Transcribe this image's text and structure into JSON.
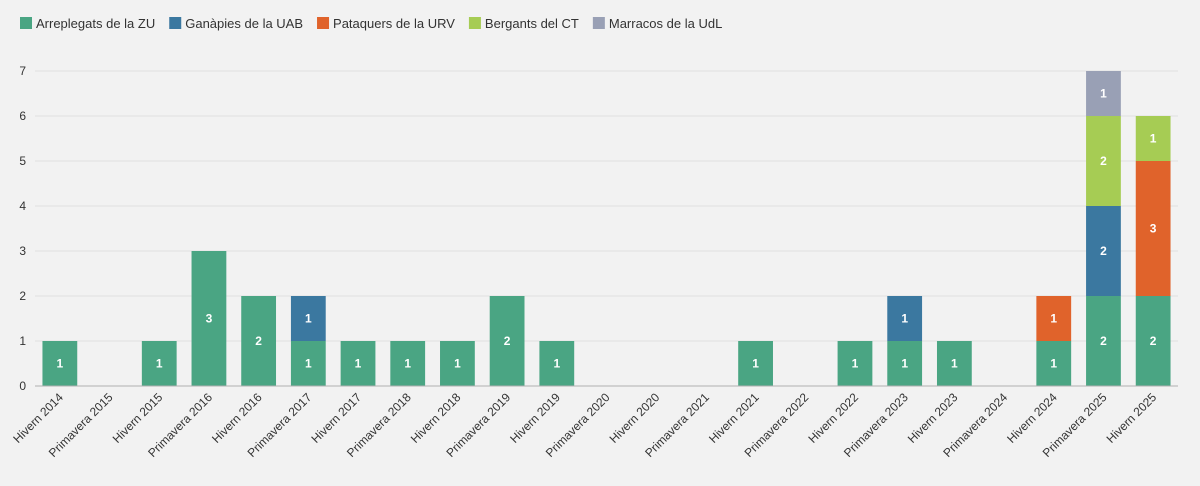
{
  "chart_data": {
    "type": "bar",
    "stacked": true,
    "title": "",
    "xlabel": "",
    "ylabel": "",
    "ylim": [
      0,
      7
    ],
    "yticks": [
      0,
      1,
      2,
      3,
      4,
      5,
      6,
      7
    ],
    "grid": true,
    "legend_position": "top-left",
    "categories": [
      "Hivern 2014",
      "Primavera 2015",
      "Hivern 2015",
      "Primavera 2016",
      "Hivern 2016",
      "Primavera 2017",
      "Hivern 2017",
      "Primavera 2018",
      "Hivern 2018",
      "Primavera 2019",
      "Hivern 2019",
      "Primavera 2020",
      "Hivern 2020",
      "Primavera 2021",
      "Hivern 2021",
      "Primavera 2022",
      "Hivern 2022",
      "Primavera 2023",
      "Hivern 2023",
      "Primavera 2024",
      "Hivern 2024",
      "Primavera 2025",
      "Hivern 2025"
    ],
    "series": [
      {
        "name": "Arreplegats de la ZU",
        "color": "#4aa583",
        "values": [
          1,
          0,
          1,
          3,
          2,
          1,
          1,
          1,
          1,
          2,
          1,
          0,
          0,
          0,
          1,
          0,
          1,
          1,
          1,
          0,
          1,
          2,
          2
        ]
      },
      {
        "name": "Ganàpies de la UAB",
        "color": "#3b78a0",
        "values": [
          0,
          0,
          0,
          0,
          0,
          1,
          0,
          0,
          0,
          0,
          0,
          0,
          0,
          0,
          0,
          0,
          0,
          1,
          0,
          0,
          0,
          2,
          0
        ]
      },
      {
        "name": "Pataquers de la URV",
        "color": "#e0632b",
        "values": [
          0,
          0,
          0,
          0,
          0,
          0,
          0,
          0,
          0,
          0,
          0,
          0,
          0,
          0,
          0,
          0,
          0,
          0,
          0,
          0,
          1,
          0,
          3
        ]
      },
      {
        "name": "Bergants del CT",
        "color": "#a6cc54",
        "values": [
          0,
          0,
          0,
          0,
          0,
          0,
          0,
          0,
          0,
          0,
          0,
          0,
          0,
          0,
          0,
          0,
          0,
          0,
          0,
          0,
          0,
          2,
          1
        ]
      },
      {
        "name": "Marracos de la UdL",
        "color": "#99a0b5",
        "values": [
          0,
          0,
          0,
          0,
          0,
          0,
          0,
          0,
          0,
          0,
          0,
          0,
          0,
          0,
          0,
          0,
          0,
          0,
          0,
          0,
          0,
          1,
          0
        ]
      }
    ]
  }
}
